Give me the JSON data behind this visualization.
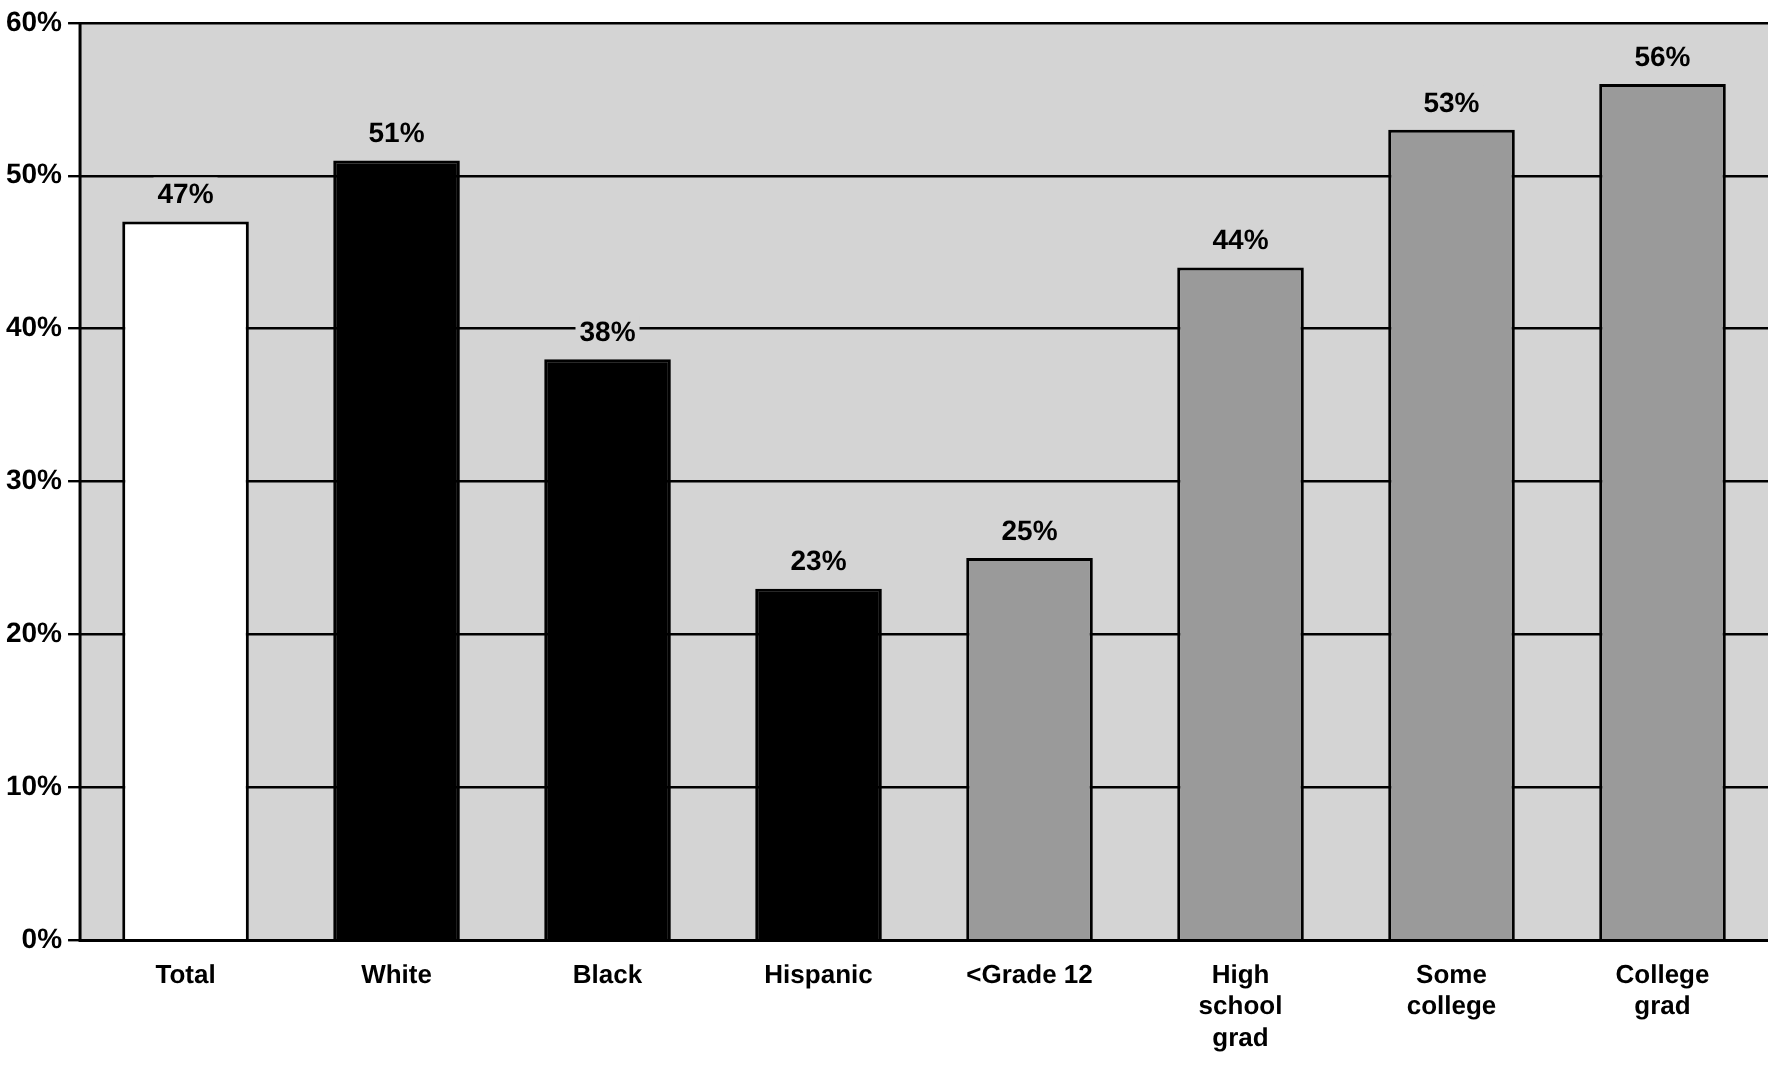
{
  "chart_data": {
    "type": "bar",
    "categories": [
      "Total",
      "White",
      "Black",
      "Hispanic",
      "<Grade 12",
      "High school grad",
      "Some college",
      "College grad"
    ],
    "values": [
      47,
      51,
      38,
      23,
      25,
      44,
      53,
      56
    ],
    "colors": [
      "#ffffff",
      "#000000",
      "#000000",
      "#000000",
      "#9a9a9a",
      "#9a9a9a",
      "#9a9a9a",
      "#9a9a9a"
    ],
    "ylim": [
      0,
      60
    ],
    "yticks": [
      {
        "value": 0,
        "label": "0%"
      },
      {
        "value": 10,
        "label": "10%"
      },
      {
        "value": 20,
        "label": "20%"
      },
      {
        "value": 30,
        "label": "30%"
      },
      {
        "value": 40,
        "label": "40%"
      },
      {
        "value": 50,
        "label": "50%"
      },
      {
        "value": 60,
        "label": "60%"
      }
    ],
    "value_labels": [
      "47%",
      "51%",
      "38%",
      "23%",
      "25%",
      "44%",
      "53%",
      "56%"
    ],
    "grid": "y",
    "legend": false
  }
}
